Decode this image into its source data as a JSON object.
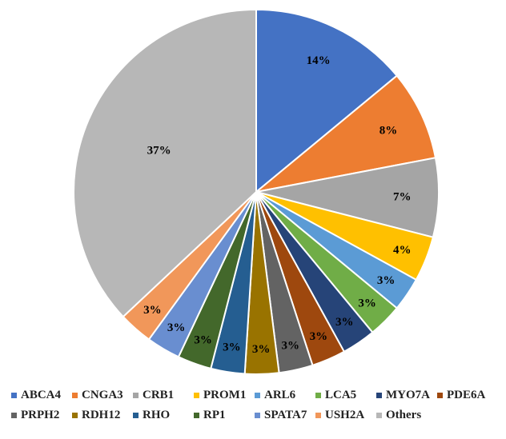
{
  "chart_data": {
    "type": "pie",
    "categories": [
      "ABCA4",
      "CNGA3",
      "CRB1",
      "PROM1",
      "ARL6",
      "LCA5",
      "MYO7A",
      "PDE6A",
      "PRPH2",
      "RDH12",
      "RHO",
      "RP1",
      "SPATA7",
      "USH2A",
      "Others"
    ],
    "values": [
      14,
      8,
      7,
      4,
      3,
      3,
      3,
      3,
      3,
      3,
      3,
      3,
      3,
      3,
      37
    ],
    "labels": [
      "14%",
      "8%",
      "7%",
      "4%",
      "3%",
      "3%",
      "3%",
      "3%",
      "3%",
      "3%",
      "3%",
      "3%",
      "3%",
      "3%",
      "37%"
    ],
    "colors": [
      "#4472C4",
      "#ED7D31",
      "#A5A5A5",
      "#FFC000",
      "#5B9BD5",
      "#70AD47",
      "#264478",
      "#9E480E",
      "#636363",
      "#997300",
      "#255E91",
      "#43682B",
      "#698ED0",
      "#F1975A",
      "#B7B7B7"
    ],
    "legend_position": "bottom",
    "start_angle": "top, clockwise"
  }
}
